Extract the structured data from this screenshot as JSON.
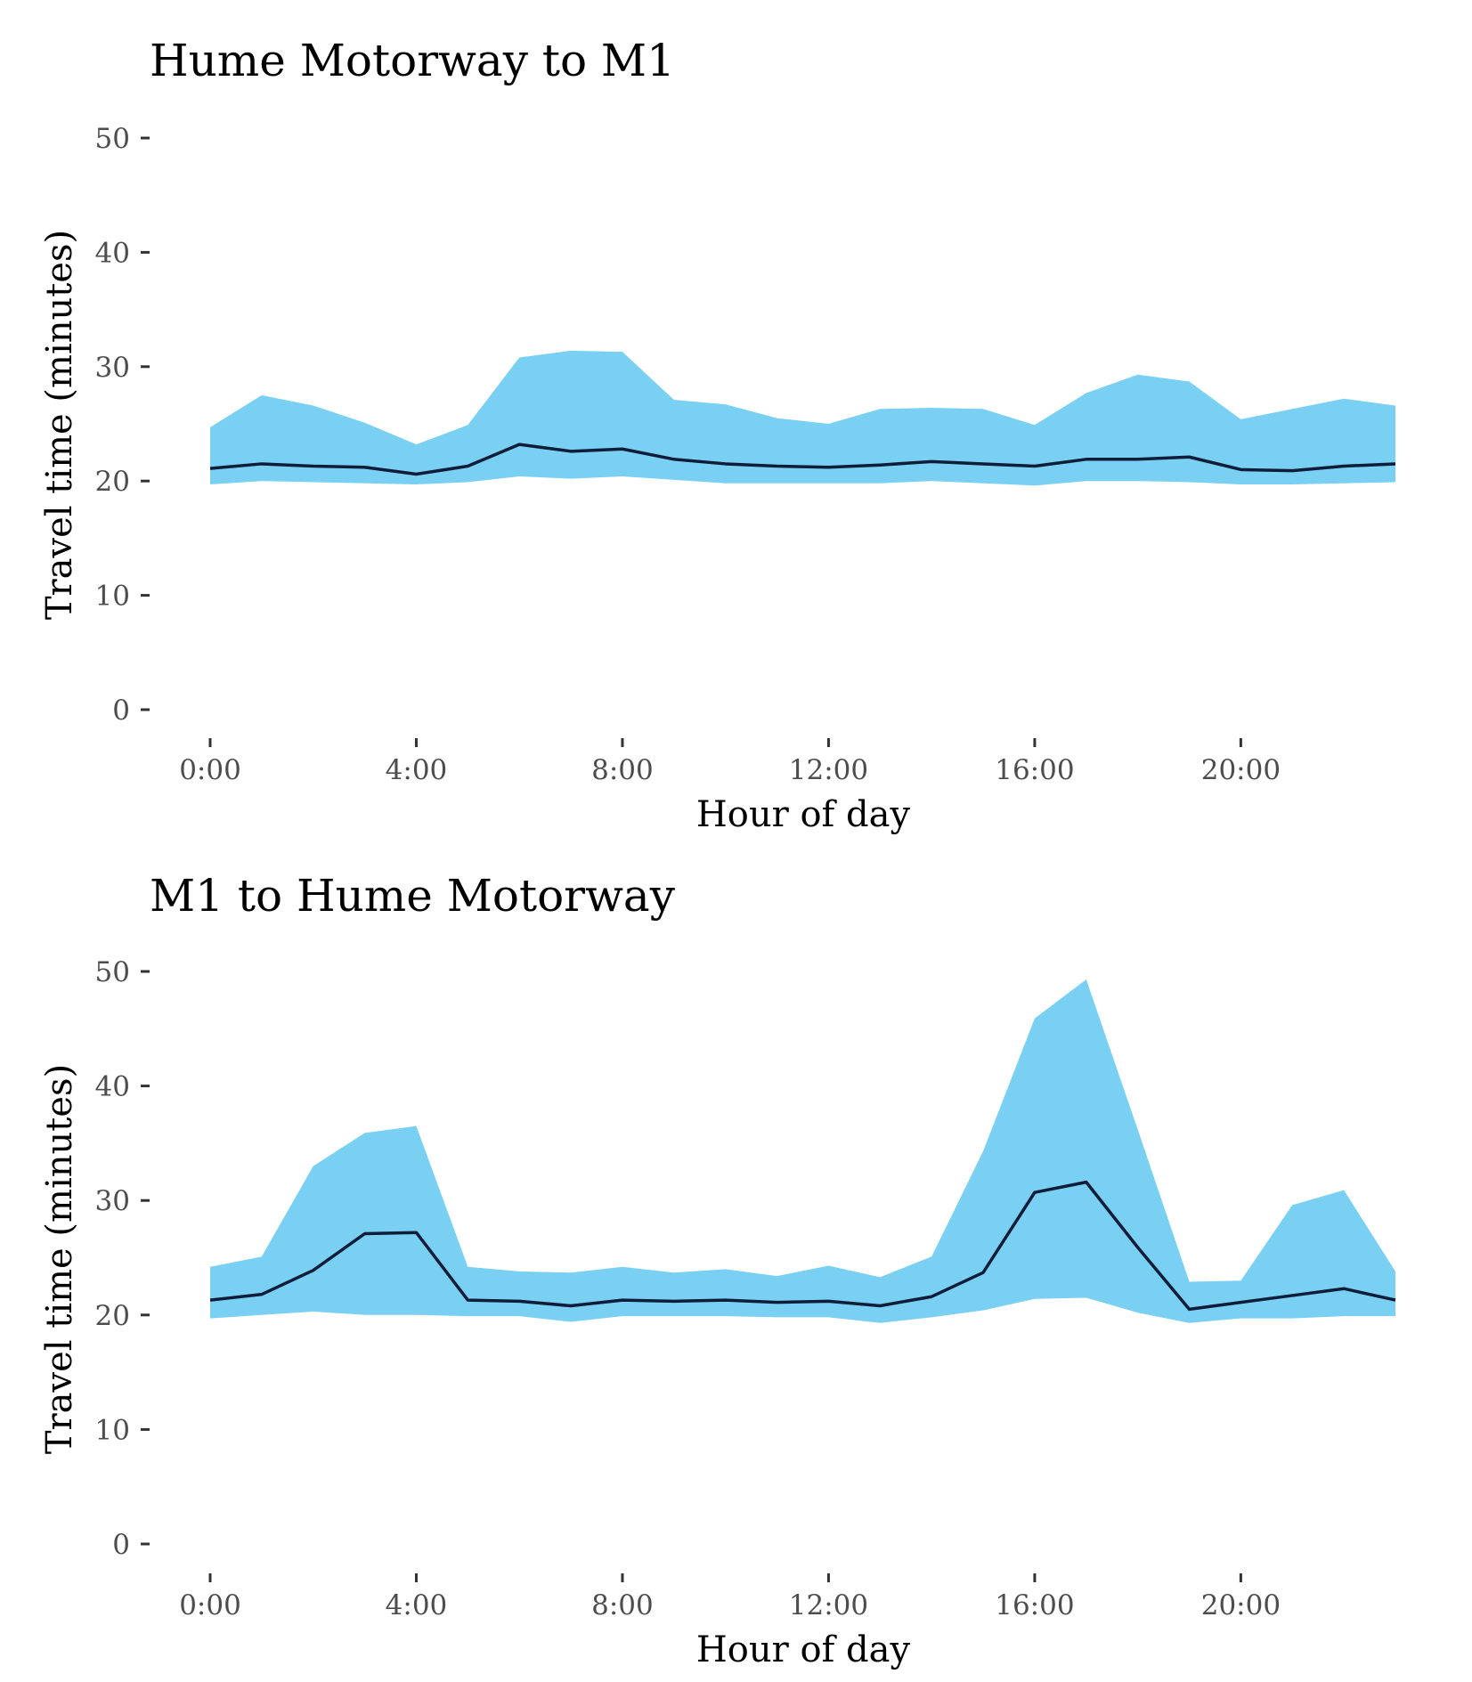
{
  "chart_data": [
    {
      "type": "area",
      "title": "Hume Motorway to M1",
      "xlabel": "Hour of day",
      "ylabel": "Travel time (minutes)",
      "xlim": [
        0,
        23
      ],
      "ylim": [
        0,
        50
      ],
      "grid": false,
      "x": [
        0,
        1,
        2,
        3,
        4,
        5,
        6,
        7,
        8,
        9,
        10,
        11,
        12,
        13,
        14,
        15,
        16,
        17,
        18,
        19,
        20,
        21,
        22,
        23
      ],
      "x_ticks": [
        0,
        4,
        8,
        12,
        16,
        20
      ],
      "x_tick_labels": [
        "0:00",
        "4:00",
        "8:00",
        "12:00",
        "16:00",
        "20:00"
      ],
      "y_ticks": [
        0,
        10,
        20,
        30,
        40,
        50
      ],
      "y_tick_labels": [
        "0",
        "10",
        "20",
        "30",
        "40",
        "50"
      ],
      "series": [
        {
          "kind": "band",
          "color": "#79d0f2",
          "lower": [
            19.7,
            20.0,
            19.9,
            19.8,
            19.7,
            19.9,
            20.4,
            20.2,
            20.4,
            20.1,
            19.8,
            19.8,
            19.8,
            19.8,
            20.0,
            19.8,
            19.6,
            20.0,
            20.0,
            19.9,
            19.7,
            19.7,
            19.8,
            19.9
          ],
          "upper": [
            24.7,
            27.5,
            26.6,
            25.1,
            23.2,
            24.9,
            30.8,
            31.4,
            31.3,
            27.1,
            26.7,
            25.5,
            25.0,
            26.3,
            26.4,
            26.3,
            24.9,
            27.7,
            29.3,
            28.7,
            25.4,
            26.3,
            27.2,
            26.6
          ]
        },
        {
          "kind": "line",
          "color": "#0f1c3a",
          "values": [
            21.1,
            21.5,
            21.3,
            21.2,
            20.6,
            21.3,
            23.2,
            22.6,
            22.8,
            21.9,
            21.5,
            21.3,
            21.2,
            21.4,
            21.7,
            21.5,
            21.3,
            21.9,
            21.9,
            22.1,
            21.0,
            20.9,
            21.3,
            21.5
          ]
        }
      ]
    },
    {
      "type": "area",
      "title": "M1 to Hume Motorway",
      "xlabel": "Hour of day",
      "ylabel": "Travel time (minutes)",
      "xlim": [
        0,
        23
      ],
      "ylim": [
        0,
        50
      ],
      "grid": false,
      "x": [
        0,
        1,
        2,
        3,
        4,
        5,
        6,
        7,
        8,
        9,
        10,
        11,
        12,
        13,
        14,
        15,
        16,
        17,
        18,
        19,
        20,
        21,
        22,
        23
      ],
      "x_ticks": [
        0,
        4,
        8,
        12,
        16,
        20
      ],
      "x_tick_labels": [
        "0:00",
        "4:00",
        "8:00",
        "12:00",
        "16:00",
        "20:00"
      ],
      "y_ticks": [
        0,
        10,
        20,
        30,
        40,
        50
      ],
      "y_tick_labels": [
        "0",
        "10",
        "20",
        "30",
        "40",
        "50"
      ],
      "series": [
        {
          "kind": "band",
          "color": "#79d0f2",
          "lower": [
            19.7,
            20.0,
            20.3,
            20.0,
            20.0,
            19.9,
            19.9,
            19.4,
            19.9,
            19.9,
            19.9,
            19.8,
            19.8,
            19.3,
            19.8,
            20.4,
            21.4,
            21.5,
            20.2,
            19.3,
            19.7,
            19.7,
            19.9,
            19.9
          ],
          "upper": [
            24.2,
            25.1,
            33.0,
            35.9,
            36.5,
            24.2,
            23.8,
            23.7,
            24.2,
            23.7,
            24.0,
            23.4,
            24.3,
            23.3,
            25.1,
            34.3,
            45.9,
            49.3,
            36.2,
            22.9,
            23.0,
            29.6,
            30.9,
            23.8
          ]
        },
        {
          "kind": "line",
          "color": "#0f1c3a",
          "values": [
            21.3,
            21.8,
            23.9,
            27.1,
            27.2,
            21.3,
            21.2,
            20.8,
            21.3,
            21.2,
            21.3,
            21.1,
            21.2,
            20.8,
            21.6,
            23.7,
            30.7,
            31.6,
            25.9,
            20.5,
            21.1,
            21.7,
            22.3,
            21.3
          ]
        }
      ]
    }
  ]
}
